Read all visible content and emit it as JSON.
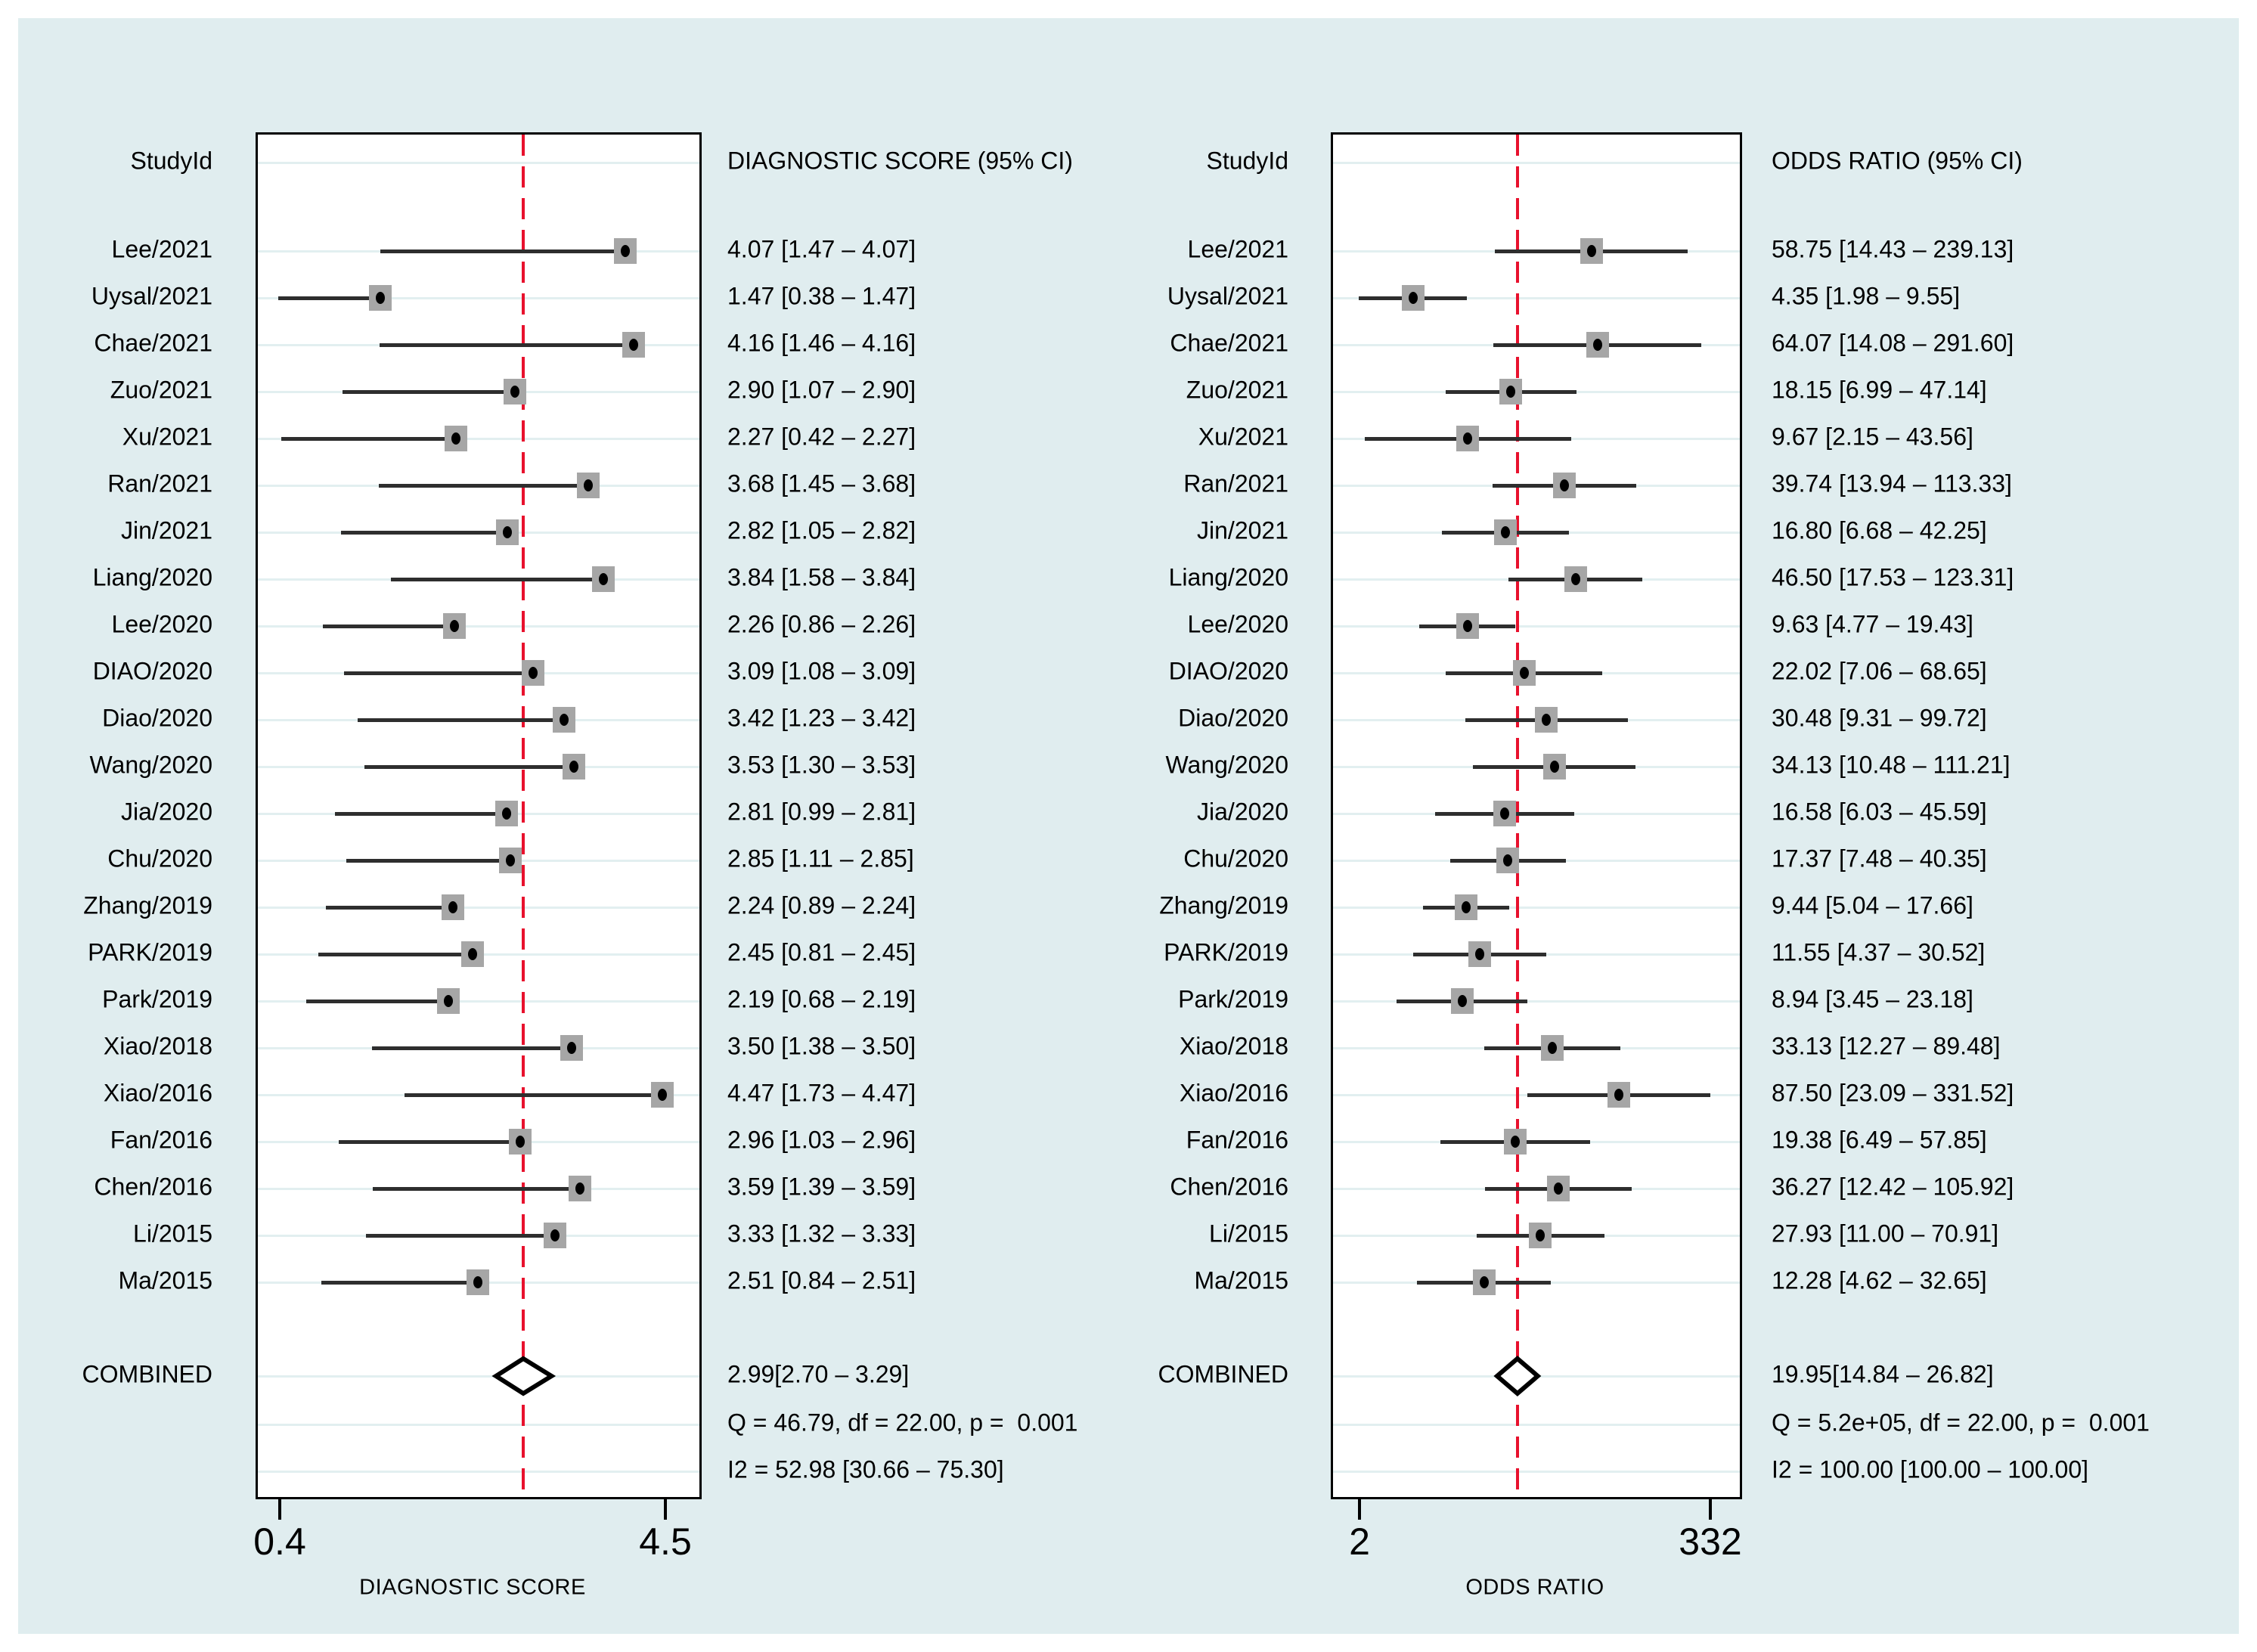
{
  "figure": {
    "name": "forest-plot-meta-analysis",
    "background": "#e0edef",
    "frame": "#ffffff"
  },
  "colors": {
    "plot_bg": "#ffffff",
    "box_border": "#000000",
    "gridline": "#e2eff0",
    "ci_line": "#2e2e2e",
    "marker_fill": "#a6a6a6",
    "marker_dot": "#000000",
    "ref_line": "#e8112d",
    "diamond_stroke": "#000000",
    "diamond_fill": "#ffffff",
    "text": "#000000"
  },
  "chart_data": [
    {
      "type": "forest",
      "panel": "diagnostic-score",
      "study_header": "StudyId",
      "value_header": "DIAGNOSTIC SCORE (95% CI)",
      "xlabel": "DIAGNOSTIC SCORE",
      "x_scale": "linear",
      "xlim": [
        0.4,
        4.5
      ],
      "x_tick_values": [
        0.4,
        4.5
      ],
      "x_tick_labels": [
        "0.4",
        "4.5"
      ],
      "grid": true,
      "rows": [
        {
          "study": "Lee/2021",
          "estimate": 4.07,
          "ci_low": 1.47,
          "ci_high": 4.07,
          "label": "4.07 [1.47 – 4.07]"
        },
        {
          "study": "Uysal/2021",
          "estimate": 1.47,
          "ci_low": 0.38,
          "ci_high": 1.47,
          "label": "1.47 [0.38 – 1.47]"
        },
        {
          "study": "Chae/2021",
          "estimate": 4.16,
          "ci_low": 1.46,
          "ci_high": 4.16,
          "label": "4.16 [1.46 – 4.16]"
        },
        {
          "study": "Zuo/2021",
          "estimate": 2.9,
          "ci_low": 1.07,
          "ci_high": 2.9,
          "label": "2.90 [1.07 – 2.90]"
        },
        {
          "study": "Xu/2021",
          "estimate": 2.27,
          "ci_low": 0.42,
          "ci_high": 2.27,
          "label": "2.27 [0.42 – 2.27]"
        },
        {
          "study": "Ran/2021",
          "estimate": 3.68,
          "ci_low": 1.45,
          "ci_high": 3.68,
          "label": "3.68 [1.45 – 3.68]"
        },
        {
          "study": "Jin/2021",
          "estimate": 2.82,
          "ci_low": 1.05,
          "ci_high": 2.82,
          "label": "2.82 [1.05 – 2.82]"
        },
        {
          "study": "Liang/2020",
          "estimate": 3.84,
          "ci_low": 1.58,
          "ci_high": 3.84,
          "label": "3.84 [1.58 – 3.84]"
        },
        {
          "study": "Lee/2020",
          "estimate": 2.26,
          "ci_low": 0.86,
          "ci_high": 2.26,
          "label": "2.26 [0.86 – 2.26]"
        },
        {
          "study": "DIAO/2020",
          "estimate": 3.09,
          "ci_low": 1.08,
          "ci_high": 3.09,
          "label": "3.09 [1.08 – 3.09]"
        },
        {
          "study": "Diao/2020",
          "estimate": 3.42,
          "ci_low": 1.23,
          "ci_high": 3.42,
          "label": "3.42 [1.23 – 3.42]"
        },
        {
          "study": "Wang/2020",
          "estimate": 3.53,
          "ci_low": 1.3,
          "ci_high": 3.53,
          "label": "3.53 [1.30 – 3.53]"
        },
        {
          "study": "Jia/2020",
          "estimate": 2.81,
          "ci_low": 0.99,
          "ci_high": 2.81,
          "label": "2.81 [0.99 – 2.81]"
        },
        {
          "study": "Chu/2020",
          "estimate": 2.85,
          "ci_low": 1.11,
          "ci_high": 2.85,
          "label": "2.85 [1.11 – 2.85]"
        },
        {
          "study": "Zhang/2019",
          "estimate": 2.24,
          "ci_low": 0.89,
          "ci_high": 2.24,
          "label": "2.24 [0.89 – 2.24]"
        },
        {
          "study": "PARK/2019",
          "estimate": 2.45,
          "ci_low": 0.81,
          "ci_high": 2.45,
          "label": "2.45 [0.81 – 2.45]"
        },
        {
          "study": "Park/2019",
          "estimate": 2.19,
          "ci_low": 0.68,
          "ci_high": 2.19,
          "label": "2.19 [0.68 – 2.19]"
        },
        {
          "study": "Xiao/2018",
          "estimate": 3.5,
          "ci_low": 1.38,
          "ci_high": 3.5,
          "label": "3.50 [1.38 – 3.50]"
        },
        {
          "study": "Xiao/2016",
          "estimate": 4.47,
          "ci_low": 1.73,
          "ci_high": 4.47,
          "label": "4.47 [1.73 – 4.47]"
        },
        {
          "study": "Fan/2016",
          "estimate": 2.96,
          "ci_low": 1.03,
          "ci_high": 2.96,
          "label": "2.96 [1.03 – 2.96]"
        },
        {
          "study": "Chen/2016",
          "estimate": 3.59,
          "ci_low": 1.39,
          "ci_high": 3.59,
          "label": "3.59 [1.39 – 3.59]"
        },
        {
          "study": "Li/2015",
          "estimate": 3.33,
          "ci_low": 1.32,
          "ci_high": 3.33,
          "label": "3.33 [1.32 – 3.33]"
        },
        {
          "study": "Ma/2015",
          "estimate": 2.51,
          "ci_low": 0.84,
          "ci_high": 2.51,
          "label": "2.51 [0.84 – 2.51]"
        }
      ],
      "combined": {
        "label": "COMBINED",
        "estimate": 2.99,
        "ci_low": 2.7,
        "ci_high": 3.29,
        "text": "2.99[2.70 – 3.29]"
      },
      "heterogeneity": [
        "Q = 46.79, df = 22.00, p =  0.001",
        "I2 = 52.98 [30.66 – 75.30]"
      ]
    },
    {
      "type": "forest",
      "panel": "odds-ratio",
      "study_header": "StudyId",
      "value_header": "ODDS RATIO (95% CI)",
      "xlabel": "ODDS RATIO",
      "x_scale": "log",
      "xlim": [
        2,
        332
      ],
      "x_tick_values": [
        2,
        332
      ],
      "x_tick_labels": [
        "2",
        "332"
      ],
      "grid": true,
      "rows": [
        {
          "study": "Lee/2021",
          "estimate": 58.75,
          "ci_low": 14.43,
          "ci_high": 239.13,
          "label": "58.75 [14.43 – 239.13]"
        },
        {
          "study": "Uysal/2021",
          "estimate": 4.35,
          "ci_low": 1.98,
          "ci_high": 9.55,
          "label": "4.35 [1.98 – 9.55]"
        },
        {
          "study": "Chae/2021",
          "estimate": 64.07,
          "ci_low": 14.08,
          "ci_high": 291.6,
          "label": "64.07 [14.08 – 291.60]"
        },
        {
          "study": "Zuo/2021",
          "estimate": 18.15,
          "ci_low": 6.99,
          "ci_high": 47.14,
          "label": "18.15 [6.99 – 47.14]"
        },
        {
          "study": "Xu/2021",
          "estimate": 9.67,
          "ci_low": 2.15,
          "ci_high": 43.56,
          "label": "9.67 [2.15 – 43.56]"
        },
        {
          "study": "Ran/2021",
          "estimate": 39.74,
          "ci_low": 13.94,
          "ci_high": 113.33,
          "label": "39.74 [13.94 – 113.33]"
        },
        {
          "study": "Jin/2021",
          "estimate": 16.8,
          "ci_low": 6.68,
          "ci_high": 42.25,
          "label": "16.80 [6.68 – 42.25]"
        },
        {
          "study": "Liang/2020",
          "estimate": 46.5,
          "ci_low": 17.53,
          "ci_high": 123.31,
          "label": "46.50 [17.53 – 123.31]"
        },
        {
          "study": "Lee/2020",
          "estimate": 9.63,
          "ci_low": 4.77,
          "ci_high": 19.43,
          "label": "9.63 [4.77 – 19.43]"
        },
        {
          "study": "DIAO/2020",
          "estimate": 22.02,
          "ci_low": 7.06,
          "ci_high": 68.65,
          "label": "22.02 [7.06 – 68.65]"
        },
        {
          "study": "Diao/2020",
          "estimate": 30.48,
          "ci_low": 9.31,
          "ci_high": 99.72,
          "label": "30.48 [9.31 – 99.72]"
        },
        {
          "study": "Wang/2020",
          "estimate": 34.13,
          "ci_low": 10.48,
          "ci_high": 111.21,
          "label": "34.13 [10.48 – 111.21]"
        },
        {
          "study": "Jia/2020",
          "estimate": 16.58,
          "ci_low": 6.03,
          "ci_high": 45.59,
          "label": "16.58 [6.03 – 45.59]"
        },
        {
          "study": "Chu/2020",
          "estimate": 17.37,
          "ci_low": 7.48,
          "ci_high": 40.35,
          "label": "17.37 [7.48 – 40.35]"
        },
        {
          "study": "Zhang/2019",
          "estimate": 9.44,
          "ci_low": 5.04,
          "ci_high": 17.66,
          "label": "9.44 [5.04 – 17.66]"
        },
        {
          "study": "PARK/2019",
          "estimate": 11.55,
          "ci_low": 4.37,
          "ci_high": 30.52,
          "label": "11.55 [4.37 – 30.52]"
        },
        {
          "study": "Park/2019",
          "estimate": 8.94,
          "ci_low": 3.45,
          "ci_high": 23.18,
          "label": "8.94 [3.45 – 23.18]"
        },
        {
          "study": "Xiao/2018",
          "estimate": 33.13,
          "ci_low": 12.27,
          "ci_high": 89.48,
          "label": "33.13 [12.27 – 89.48]"
        },
        {
          "study": "Xiao/2016",
          "estimate": 87.5,
          "ci_low": 23.09,
          "ci_high": 331.52,
          "label": "87.50 [23.09 – 331.52]"
        },
        {
          "study": "Fan/2016",
          "estimate": 19.38,
          "ci_low": 6.49,
          "ci_high": 57.85,
          "label": "19.38 [6.49 – 57.85]"
        },
        {
          "study": "Chen/2016",
          "estimate": 36.27,
          "ci_low": 12.42,
          "ci_high": 105.92,
          "label": "36.27 [12.42 – 105.92]"
        },
        {
          "study": "Li/2015",
          "estimate": 27.93,
          "ci_low": 11.0,
          "ci_high": 70.91,
          "label": "27.93 [11.00 – 70.91]"
        },
        {
          "study": "Ma/2015",
          "estimate": 12.28,
          "ci_low": 4.62,
          "ci_high": 32.65,
          "label": "12.28 [4.62 – 32.65]"
        }
      ],
      "combined": {
        "label": "COMBINED",
        "estimate": 19.95,
        "ci_low": 14.84,
        "ci_high": 26.82,
        "text": "19.95[14.84 – 26.82]"
      },
      "heterogeneity": [
        "Q = 5.2e+05, df = 22.00, p =  0.001",
        "I2 = 100.00 [100.00 – 100.00]"
      ]
    }
  ]
}
